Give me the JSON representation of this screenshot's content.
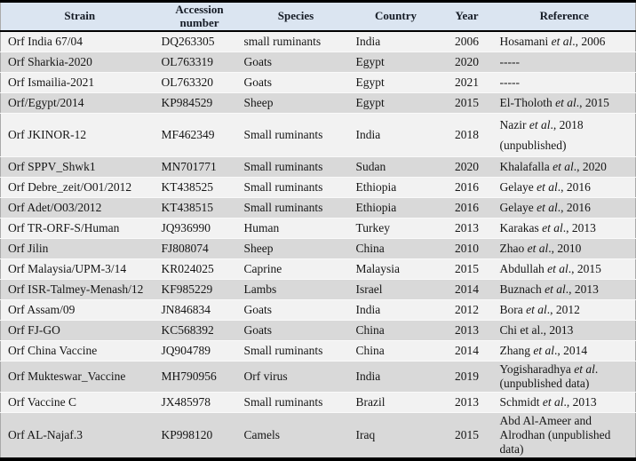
{
  "table": {
    "title": "Orf virus strain information table",
    "columns": [
      "Strain",
      "Accession\nnumber",
      "Species",
      "Country",
      "Year",
      "Reference"
    ],
    "rows": [
      {
        "strain": "Orf India 67/04",
        "accession": "DQ263305",
        "species": "small ruminants",
        "country": "India",
        "year": "2006",
        "reference": "Hosamani *et al*., 2006"
      },
      {
        "strain": "Orf Sharkia-2020",
        "accession": "OL763319",
        "species": "Goats",
        "country": "Egypt",
        "year": "2020",
        "reference": "-----"
      },
      {
        "strain": "Orf Ismailia-2021",
        "accession": "OL763320",
        "species": "Goats",
        "country": "Egypt",
        "year": "2021",
        "reference": "-----"
      },
      {
        "strain": "Orf/Egypt/2014",
        "accession": "KP984529",
        "species": "Sheep",
        "country": "Egypt",
        "year": "2015",
        "reference": "El-Tholoth *et al*., 2015"
      },
      {
        "strain": "Orf JKINOR-12",
        "accession": "MF462349",
        "species": "Small ruminants",
        "country": "India",
        "year": "2018",
        "reference": "Nazir *et al*., 2018\n(unpublished)"
      },
      {
        "strain": "Orf SPPV_Shwk1",
        "accession": "MN701771",
        "species": "Small ruminants",
        "country": "Sudan",
        "year": "2020",
        "reference": "Khalafalla *et al*., 2020"
      },
      {
        "strain": "Orf Debre_zeit/O01/2012",
        "accession": "KT438525",
        "species": "Small ruminants",
        "country": "Ethiopia",
        "year": "2016",
        "reference": "Gelaye *et al*., 2016"
      },
      {
        "strain": "Orf Adet/O03/2012",
        "accession": "KT438515",
        "species": "Small ruminants",
        "country": "Ethiopia",
        "year": "2016",
        "reference": "Gelaye *et al*., 2016"
      },
      {
        "strain": "Orf TR-ORF-S/Human",
        "accession": "JQ936990",
        "species": "Human",
        "country": "Turkey",
        "year": "2013",
        "reference": "Karakas *et al*., 2013"
      },
      {
        "strain": "Orf Jilin",
        "accession": "FJ808074",
        "species": "Sheep",
        "country": "China",
        "year": "2010",
        "reference": "Zhao *et al*., 2010"
      },
      {
        "strain": "Orf Malaysia/UPM-3/14",
        "accession": "KR024025",
        "species": "Caprine",
        "country": "Malaysia",
        "year": "2015",
        "reference": "Abdullah *et al*., 2015"
      },
      {
        "strain": "Orf ISR-Talmey-Menash/12",
        "accession": "KF985229",
        "species": "Lambs",
        "country": "Israel",
        "year": "2014",
        "reference": "Buznach *et al*., 2013"
      },
      {
        "strain": "Orf Assam/09",
        "accession": "JN846834",
        "species": "Goats",
        "country": "India",
        "year": "2012",
        "reference": "Bora *et al*., 2012"
      },
      {
        "strain": "Orf FJ-GO",
        "accession": "KC568392",
        "species": "Goats",
        "country": "China",
        "year": "2013",
        "reference": "Chi et al., 2013"
      },
      {
        "strain": "Orf China Vaccine",
        "accession": "JQ904789",
        "species": "Small ruminants",
        "country": "China",
        "year": "2014",
        "reference": "Zhang *et al*., 2014"
      },
      {
        "strain": "Orf Mukteswar_Vaccine",
        "accession": "MH790956",
        "species": "Orf virus",
        "country": "India",
        "year": "2019",
        "reference": "Yogisharadhya *et al*.\n(unpublished data)"
      },
      {
        "strain": "Orf Vaccine C",
        "accession": "JX485978",
        "species": "Small ruminants",
        "country": "Brazil",
        "year": "2013",
        "reference": "Schmidt *et al*., 2013"
      },
      {
        "strain": "Orf AL-Najaf.3",
        "accession": "KP998120",
        "species": "Camels",
        "country": "Iraq",
        "year": "2015",
        "reference": "Abd Al-Ameer and\nAlrodhan (unpublished\ndata)"
      }
    ]
  },
  "colors": {
    "header_bg": "#dbe5f1",
    "row_light": "#f2f2f2",
    "row_dark": "#d9d9d9",
    "border": "#000000",
    "text": "#161616"
  }
}
